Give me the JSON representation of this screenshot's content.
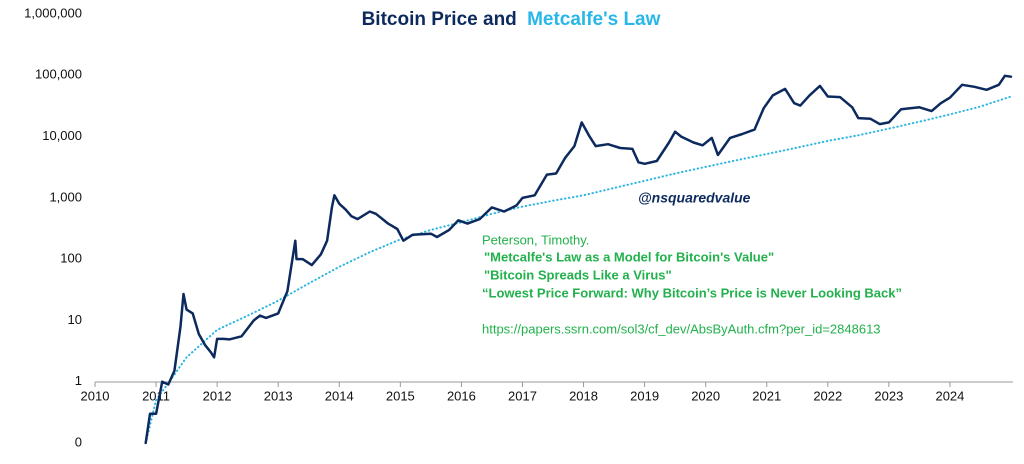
{
  "chart_data": {
    "type": "line",
    "title_parts": [
      {
        "text": "Bitcoin Price and",
        "color": "#0d2a5e"
      },
      {
        "text": "Metcalfe's Law",
        "color": "#29b6e8"
      }
    ],
    "annotations": [
      "@nsquaredvalue",
      "Peterson, Timothy.",
      "\"Metcalfe's Law as a Model for Bitcoin's Value\"",
      "\"Bitcoin Spreads Like a Virus\"",
      "“Lowest Price Forward: Why Bitcoin’s Price is Never Looking Back”",
      "https://papers.ssrn.com/sol3/cf_dev/AbsByAuth.cfm?per_id=2848613"
    ],
    "log_scale_y": true,
    "xlim": [
      2010,
      2025
    ],
    "xticks": [
      2010,
      2011,
      2012,
      2013,
      2014,
      2015,
      2016,
      2017,
      2018,
      2019,
      2020,
      2021,
      2022,
      2023,
      2024
    ],
    "ylim": [
      0.1,
      1000000
    ],
    "yticks": [
      {
        "value": 0.1,
        "label": "0"
      },
      1,
      10,
      100,
      {
        "value": 1000,
        "label": "1,000"
      },
      {
        "value": 10000,
        "label": "10,000"
      },
      {
        "value": 100000,
        "label": "100,000"
      },
      {
        "value": 1000000,
        "label": "1,000,000"
      }
    ],
    "series": [
      {
        "color": "#0d2a5e",
        "style": "solid",
        "x": [
          2010.83,
          2010.9,
          2011.0,
          2011.1,
          2011.2,
          2011.3,
          2011.4,
          2011.45,
          2011.5,
          2011.6,
          2011.7,
          2011.8,
          2011.9,
          2011.95,
          2012.0,
          2012.1,
          2012.2,
          2012.4,
          2012.6,
          2012.7,
          2012.8,
          2013.0,
          2013.15,
          2013.28,
          2013.3,
          2013.4,
          2013.55,
          2013.7,
          2013.8,
          2013.88,
          2013.92,
          2014.0,
          2014.1,
          2014.2,
          2014.3,
          2014.5,
          2014.6,
          2014.8,
          2014.95,
          2015.05,
          2015.2,
          2015.5,
          2015.6,
          2015.8,
          2015.95,
          2016.1,
          2016.3,
          2016.5,
          2016.7,
          2016.9,
          2017.0,
          2017.2,
          2017.4,
          2017.55,
          2017.7,
          2017.85,
          2017.97,
          2018.1,
          2018.2,
          2018.4,
          2018.6,
          2018.8,
          2018.9,
          2019.0,
          2019.2,
          2019.4,
          2019.5,
          2019.6,
          2019.8,
          2019.95,
          2020.1,
          2020.2,
          2020.4,
          2020.6,
          2020.8,
          2020.95,
          2021.1,
          2021.3,
          2021.45,
          2021.55,
          2021.7,
          2021.87,
          2022.0,
          2022.2,
          2022.4,
          2022.5,
          2022.7,
          2022.85,
          2023.0,
          2023.2,
          2023.5,
          2023.7,
          2023.85,
          2024.0,
          2024.2,
          2024.4,
          2024.6,
          2024.8,
          2024.9,
          2025.0
        ],
        "values": [
          0.1,
          0.3,
          0.3,
          1,
          0.9,
          1.5,
          8,
          27,
          15,
          13,
          6,
          4,
          3,
          2.5,
          5,
          5,
          4.9,
          5.5,
          10,
          12,
          11,
          13,
          30,
          200,
          100,
          100,
          80,
          120,
          200,
          700,
          1100,
          800,
          650,
          500,
          450,
          600,
          550,
          380,
          310,
          200,
          250,
          260,
          230,
          300,
          430,
          380,
          450,
          700,
          600,
          750,
          1000,
          1100,
          2400,
          2500,
          4500,
          7000,
          17000,
          10000,
          7000,
          7500,
          6500,
          6300,
          3800,
          3600,
          4000,
          8000,
          12000,
          10000,
          8000,
          7200,
          9500,
          5000,
          9500,
          11000,
          13000,
          29000,
          47000,
          60000,
          35000,
          32000,
          47000,
          67000,
          45000,
          44000,
          30000,
          20000,
          19500,
          16000,
          17000,
          28000,
          30000,
          26000,
          35000,
          43000,
          70000,
          65000,
          58000,
          70000,
          98000,
          95000
        ]
      },
      {
        "color": "#2bb5e0",
        "style": "dotted",
        "x": [
          2010.83,
          2011.0,
          2011.5,
          2012.0,
          2012.5,
          2013.0,
          2013.5,
          2014.0,
          2014.5,
          2015.0,
          2015.5,
          2016.0,
          2016.5,
          2017.0,
          2017.5,
          2018.0,
          2018.5,
          2019.0,
          2019.5,
          2020.0,
          2020.5,
          2021.0,
          2021.5,
          2022.0,
          2022.5,
          2023.0,
          2023.5,
          2024.0,
          2024.5,
          2025.0
        ],
        "values": [
          0.1,
          0.5,
          2.5,
          7,
          12,
          21,
          40,
          75,
          130,
          210,
          300,
          400,
          550,
          720,
          900,
          1100,
          1450,
          1900,
          2500,
          3200,
          4100,
          5200,
          6600,
          8500,
          10500,
          13500,
          17500,
          23000,
          31000,
          45000
        ]
      }
    ]
  }
}
